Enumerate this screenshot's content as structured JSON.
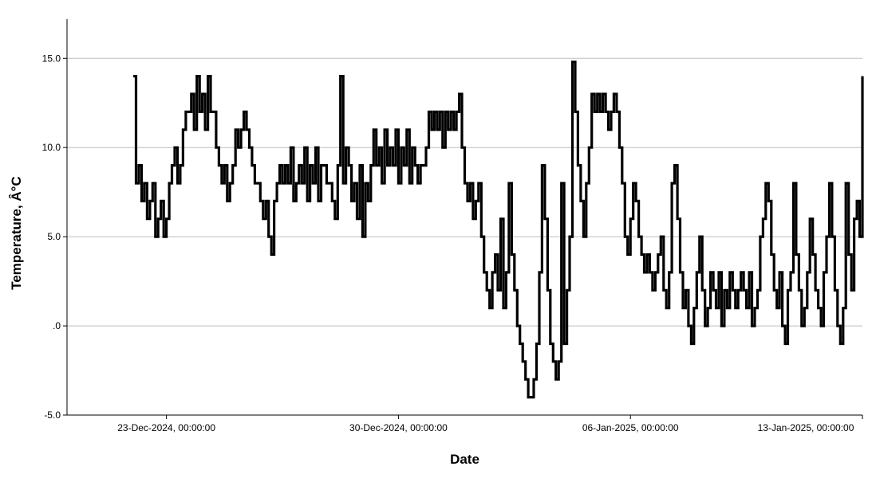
{
  "chart_data": {
    "type": "line",
    "title": "",
    "xlabel": "Date",
    "ylabel": "Temperature, Â°C",
    "xlim": [
      "2024-12-20T00:00:00",
      "2025-01-13T00:00:00"
    ],
    "ylim": [
      -5,
      15
    ],
    "grid": {
      "horizontal": true,
      "vertical": false
    },
    "legend": "none",
    "series_color": "#000000",
    "grid_color": "#bdbdbd",
    "yticks": [
      {
        "value": 15,
        "label": "15.0"
      },
      {
        "value": 10,
        "label": "10.0"
      },
      {
        "value": 5,
        "label": "5.0"
      },
      {
        "value": 0,
        "label": ".0"
      },
      {
        "value": -5,
        "label": "-5.0"
      }
    ],
    "xticks": [
      {
        "value": "2024-12-23T00:00:00",
        "label": "23-Dec-2024, 00:00:00"
      },
      {
        "value": "2024-12-30T00:00:00",
        "label": "30-Dec-2024, 00:00:00"
      },
      {
        "value": "2025-01-06T00:00:00",
        "label": "06-Jan-2025, 00:00:00"
      },
      {
        "value": "2025-01-13T00:00:00",
        "label": "13-Jan-2025, 00:00:00"
      }
    ],
    "series": [
      {
        "x": [
          "2024-12-22T00:00",
          "2024-12-22T02:00",
          "2024-12-22T04:00",
          "2024-12-22T06:00",
          "2024-12-22T08:00",
          "2024-12-22T10:00",
          "2024-12-22T12:00",
          "2024-12-22T14:00",
          "2024-12-22T16:00",
          "2024-12-22T18:00",
          "2024-12-22T20:00",
          "2024-12-22T22:00",
          "2024-12-23T00:00",
          "2024-12-23T02:00",
          "2024-12-23T04:00",
          "2024-12-23T06:00",
          "2024-12-23T08:00",
          "2024-12-23T10:00",
          "2024-12-23T12:00",
          "2024-12-23T14:00",
          "2024-12-23T16:00",
          "2024-12-23T18:00",
          "2024-12-23T20:00",
          "2024-12-23T22:00",
          "2024-12-24T00:00",
          "2024-12-24T02:00",
          "2024-12-24T04:00",
          "2024-12-24T06:00",
          "2024-12-24T08:00",
          "2024-12-24T10:00",
          "2024-12-24T12:00",
          "2024-12-24T14:00",
          "2024-12-24T16:00",
          "2024-12-24T18:00",
          "2024-12-24T20:00",
          "2024-12-24T22:00",
          "2024-12-25T00:00",
          "2024-12-25T02:00",
          "2024-12-25T04:00",
          "2024-12-25T06:00",
          "2024-12-25T08:00",
          "2024-12-25T10:00",
          "2024-12-25T12:00",
          "2024-12-25T14:00",
          "2024-12-25T16:00",
          "2024-12-25T18:00",
          "2024-12-25T20:00",
          "2024-12-25T22:00",
          "2024-12-26T00:00",
          "2024-12-26T02:00",
          "2024-12-26T04:00",
          "2024-12-26T06:00",
          "2024-12-26T08:00",
          "2024-12-26T10:00",
          "2024-12-26T12:00",
          "2024-12-26T14:00",
          "2024-12-26T16:00",
          "2024-12-26T18:00",
          "2024-12-26T20:00",
          "2024-12-26T22:00",
          "2024-12-27T00:00",
          "2024-12-27T02:00",
          "2024-12-27T04:00",
          "2024-12-27T06:00",
          "2024-12-27T08:00",
          "2024-12-27T10:00",
          "2024-12-27T12:00",
          "2024-12-27T14:00",
          "2024-12-27T16:00",
          "2024-12-27T18:00",
          "2024-12-27T20:00",
          "2024-12-27T22:00",
          "2024-12-28T00:00",
          "2024-12-28T02:00",
          "2024-12-28T04:00",
          "2024-12-28T06:00",
          "2024-12-28T08:00",
          "2024-12-28T10:00",
          "2024-12-28T12:00",
          "2024-12-28T14:00",
          "2024-12-28T16:00",
          "2024-12-28T18:00",
          "2024-12-28T20:00",
          "2024-12-28T22:00",
          "2024-12-29T00:00",
          "2024-12-29T02:00",
          "2024-12-29T04:00",
          "2024-12-29T06:00",
          "2024-12-29T08:00",
          "2024-12-29T10:00",
          "2024-12-29T12:00",
          "2024-12-29T14:00",
          "2024-12-29T16:00",
          "2024-12-29T18:00",
          "2024-12-29T20:00",
          "2024-12-29T22:00",
          "2024-12-30T00:00",
          "2024-12-30T02:00",
          "2024-12-30T04:00",
          "2024-12-30T06:00",
          "2024-12-30T08:00",
          "2024-12-30T10:00",
          "2024-12-30T12:00",
          "2024-12-30T14:00",
          "2024-12-30T16:00",
          "2024-12-30T18:00",
          "2024-12-30T20:00",
          "2024-12-30T22:00",
          "2024-12-31T00:00",
          "2024-12-31T02:00",
          "2024-12-31T04:00",
          "2024-12-31T06:00",
          "2024-12-31T08:00",
          "2024-12-31T10:00",
          "2024-12-31T12:00",
          "2024-12-31T14:00",
          "2024-12-31T16:00",
          "2024-12-31T18:00",
          "2024-12-31T20:00",
          "2024-12-31T22:00",
          "2025-01-01T00:00",
          "2025-01-01T02:00",
          "2025-01-01T04:00",
          "2025-01-01T06:00",
          "2025-01-01T08:00",
          "2025-01-01T10:00",
          "2025-01-01T12:00",
          "2025-01-01T14:00",
          "2025-01-01T16:00",
          "2025-01-01T18:00",
          "2025-01-01T20:00",
          "2025-01-01T22:00",
          "2025-01-02T00:00",
          "2025-01-02T02:00",
          "2025-01-02T04:00",
          "2025-01-02T06:00",
          "2025-01-02T08:00",
          "2025-01-02T10:00",
          "2025-01-02T12:00",
          "2025-01-02T14:00",
          "2025-01-02T16:00",
          "2025-01-02T18:00",
          "2025-01-02T20:00",
          "2025-01-02T22:00",
          "2025-01-03T00:00",
          "2025-01-03T02:00",
          "2025-01-03T04:00",
          "2025-01-03T06:00",
          "2025-01-03T08:00",
          "2025-01-03T10:00",
          "2025-01-03T12:00",
          "2025-01-03T14:00",
          "2025-01-03T16:00",
          "2025-01-03T18:00",
          "2025-01-03T20:00",
          "2025-01-03T22:00",
          "2025-01-04T00:00",
          "2025-01-04T02:00",
          "2025-01-04T04:00",
          "2025-01-04T06:00",
          "2025-01-04T08:00",
          "2025-01-04T10:00",
          "2025-01-04T12:00",
          "2025-01-04T14:00",
          "2025-01-04T16:00",
          "2025-01-04T18:00",
          "2025-01-04T20:00",
          "2025-01-04T22:00",
          "2025-01-05T00:00",
          "2025-01-05T02:00",
          "2025-01-05T04:00",
          "2025-01-05T06:00",
          "2025-01-05T08:00",
          "2025-01-05T10:00",
          "2025-01-05T12:00",
          "2025-01-05T14:00",
          "2025-01-05T16:00",
          "2025-01-05T18:00",
          "2025-01-05T20:00",
          "2025-01-05T22:00",
          "2025-01-06T00:00",
          "2025-01-06T02:00",
          "2025-01-06T04:00",
          "2025-01-06T06:00",
          "2025-01-06T08:00",
          "2025-01-06T10:00",
          "2025-01-06T12:00",
          "2025-01-06T14:00",
          "2025-01-06T16:00",
          "2025-01-06T18:00",
          "2025-01-06T20:00",
          "2025-01-06T22:00",
          "2025-01-07T00:00",
          "2025-01-07T02:00",
          "2025-01-07T04:00",
          "2025-01-07T06:00",
          "2025-01-07T08:00",
          "2025-01-07T10:00",
          "2025-01-07T12:00",
          "2025-01-07T14:00",
          "2025-01-07T16:00",
          "2025-01-07T18:00",
          "2025-01-07T20:00",
          "2025-01-07T22:00",
          "2025-01-08T00:00",
          "2025-01-08T02:00",
          "2025-01-08T04:00",
          "2025-01-08T06:00",
          "2025-01-08T08:00",
          "2025-01-08T10:00",
          "2025-01-08T12:00",
          "2025-01-08T14:00",
          "2025-01-08T16:00",
          "2025-01-08T18:00",
          "2025-01-08T20:00",
          "2025-01-08T22:00",
          "2025-01-09T00:00",
          "2025-01-09T02:00",
          "2025-01-09T04:00",
          "2025-01-09T06:00",
          "2025-01-09T08:00",
          "2025-01-09T10:00",
          "2025-01-09T12:00",
          "2025-01-09T14:00",
          "2025-01-09T16:00",
          "2025-01-09T18:00",
          "2025-01-09T20:00",
          "2025-01-09T22:00",
          "2025-01-10T00:00",
          "2025-01-10T02:00",
          "2025-01-10T04:00",
          "2025-01-10T06:00",
          "2025-01-10T08:00",
          "2025-01-10T10:00",
          "2025-01-10T12:00",
          "2025-01-10T14:00",
          "2025-01-10T16:00",
          "2025-01-10T18:00",
          "2025-01-10T20:00",
          "2025-01-10T22:00",
          "2025-01-11T00:00",
          "2025-01-11T02:00",
          "2025-01-11T04:00",
          "2025-01-11T06:00",
          "2025-01-11T08:00",
          "2025-01-11T10:00",
          "2025-01-11T12:00",
          "2025-01-11T14:00",
          "2025-01-11T16:00",
          "2025-01-11T18:00",
          "2025-01-11T20:00",
          "2025-01-11T22:00",
          "2025-01-12T00:00",
          "2025-01-12T02:00",
          "2025-01-12T04:00",
          "2025-01-12T06:00",
          "2025-01-12T08:00",
          "2025-01-12T10:00",
          "2025-01-12T12:00",
          "2025-01-12T14:00",
          "2025-01-12T16:00",
          "2025-01-12T18:00",
          "2025-01-12T20:00",
          "2025-01-12T22:00",
          "2025-01-13T00:00"
        ],
        "y": [
          14,
          8,
          9,
          7,
          8,
          6,
          7,
          8,
          5,
          6,
          7,
          5,
          6,
          8,
          9,
          10,
          8,
          9,
          11,
          12,
          12,
          13,
          11,
          14,
          12,
          13,
          11,
          14,
          12,
          12,
          10,
          9,
          8,
          9,
          7,
          8,
          9,
          11,
          10,
          11,
          12,
          11,
          10,
          9,
          8,
          8,
          7,
          6,
          7,
          5,
          4,
          7,
          8,
          9,
          8,
          9,
          8,
          10,
          7,
          8,
          9,
          8,
          10,
          7,
          9,
          8,
          10,
          7,
          9,
          9,
          8,
          8,
          7,
          6,
          9,
          14,
          8,
          10,
          9,
          7,
          8,
          6,
          9,
          5,
          8,
          7,
          9,
          11,
          9,
          10,
          8,
          11,
          9,
          10,
          9,
          11,
          8,
          10,
          9,
          11,
          8,
          10,
          9,
          8,
          9,
          9,
          10,
          12,
          11,
          12,
          11,
          12,
          10,
          12,
          11,
          12,
          11,
          12,
          13,
          10,
          8,
          7,
          8,
          6,
          7,
          8,
          5,
          3,
          2,
          1,
          3,
          4,
          2,
          6,
          1,
          3,
          8,
          4,
          2,
          0,
          -1,
          -2,
          -3,
          -4,
          -4,
          -3,
          -1,
          3,
          9,
          6,
          2,
          -1,
          -2,
          -3,
          -2,
          8,
          -1,
          2,
          5,
          14.8,
          12,
          9,
          7,
          5,
          8,
          10,
          13,
          12,
          13,
          12,
          13,
          12,
          11,
          12,
          13,
          12,
          10,
          8,
          5,
          4,
          6,
          8,
          7,
          5,
          4,
          3,
          4,
          3,
          2,
          3,
          4,
          5,
          2,
          1,
          3,
          8,
          9,
          6,
          3,
          1,
          2,
          0,
          -1,
          1,
          3,
          5,
          2,
          0,
          1,
          3,
          2,
          1,
          3,
          0,
          2,
          1,
          3,
          2,
          1,
          2,
          3,
          2,
          1,
          3,
          0,
          1,
          2,
          5,
          6,
          8,
          7,
          4,
          2,
          1,
          3,
          0,
          -1,
          2,
          3,
          8,
          4,
          2,
          0,
          1,
          3,
          6,
          4,
          2,
          1,
          0,
          3,
          5,
          8,
          5,
          2,
          0,
          -1,
          1,
          8,
          4,
          2,
          6,
          7,
          5,
          14
        ]
      }
    ]
  }
}
